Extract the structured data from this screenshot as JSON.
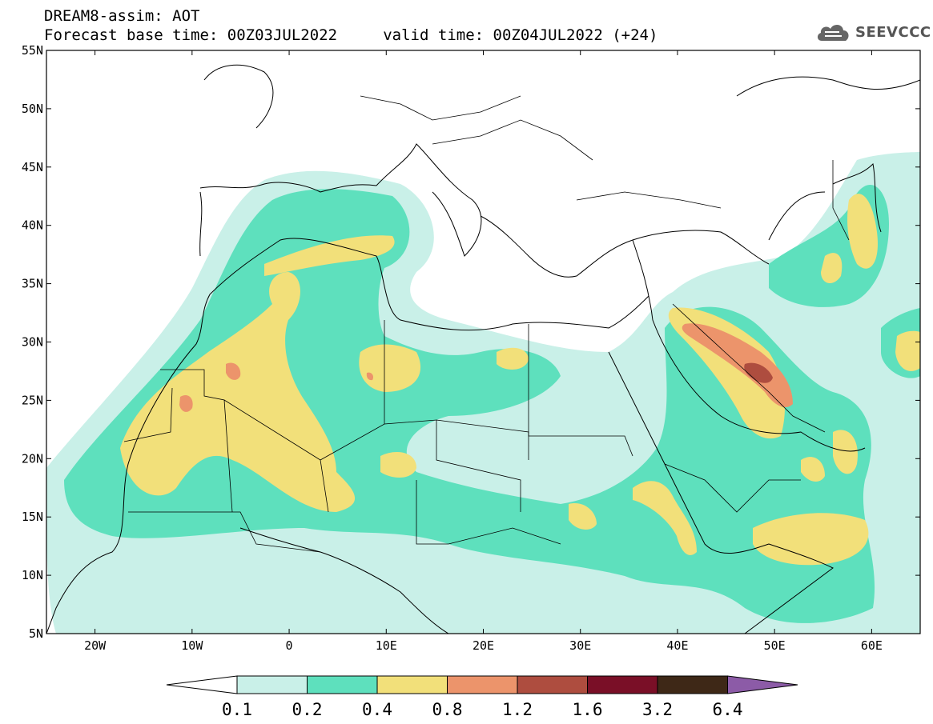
{
  "header": {
    "line1": "DREAM8-assim: AOT",
    "line2": "Forecast base time: 00Z03JUL2022     valid time: 00Z04JUL2022 (+24)"
  },
  "logo": {
    "text": "SEEVCCC",
    "icon": "cloud-icon"
  },
  "map": {
    "lat_labels": [
      "55N",
      "50N",
      "45N",
      "40N",
      "35N",
      "30N",
      "25N",
      "20N",
      "15N",
      "10N",
      "5N"
    ],
    "lon_labels": [
      "20W",
      "10W",
      "0",
      "10E",
      "20E",
      "30E",
      "40E",
      "50E",
      "60E"
    ],
    "lon_range": [
      -25,
      65
    ],
    "lat_range": [
      5,
      55
    ],
    "variable": "AOT"
  },
  "colorbar": {
    "levels": [
      "0.1",
      "0.2",
      "0.4",
      "0.8",
      "1.2",
      "1.6",
      "3.2",
      "6.4"
    ],
    "colors": [
      "#c9f0e8",
      "#5ee0bd",
      "#f2e07a",
      "#ec946b",
      "#ae4d3f",
      "#7a0f27",
      "#3e2817",
      "#8c5ba7"
    ],
    "under_color": "#ffffff"
  }
}
